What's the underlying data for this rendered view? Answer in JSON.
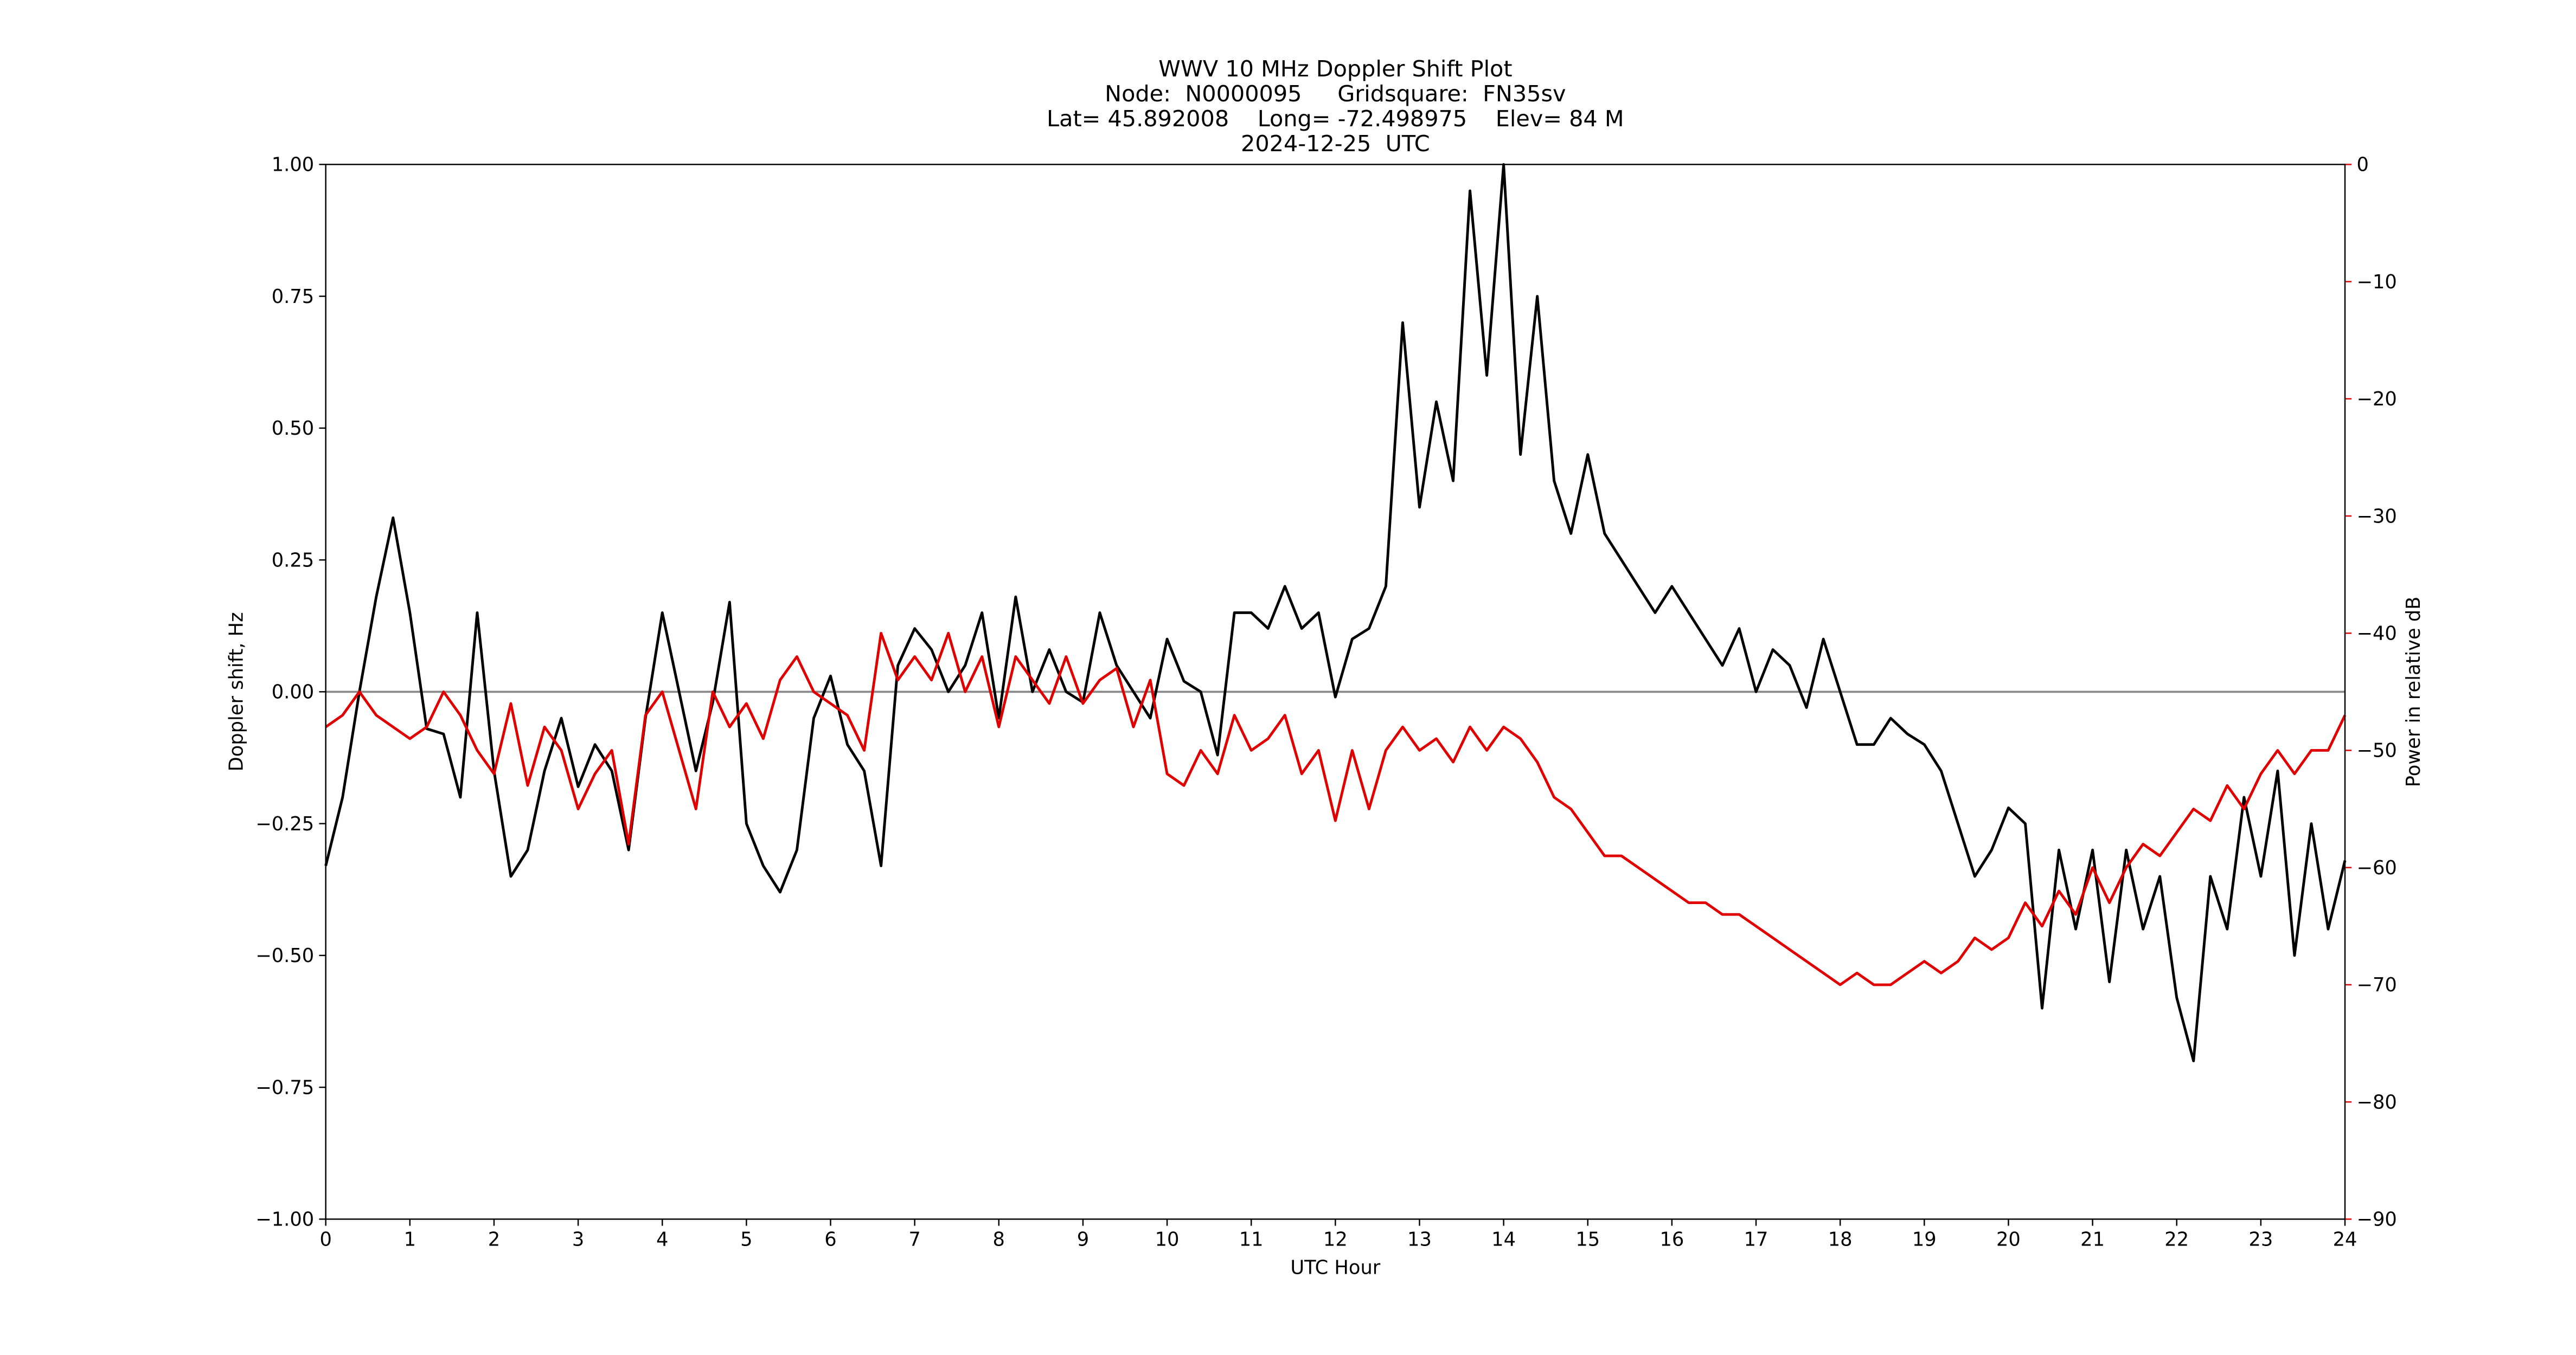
{
  "chart_data": {
    "type": "line",
    "title": [
      "WWV 10 MHz Doppler Shift Plot",
      "Node:  N0000095     Gridsquare:  FN35sv",
      "Lat= 45.892008    Long= -72.498975    Elev= 84 M",
      "2024-12-25  UTC"
    ],
    "xlabel": "UTC Hour",
    "ylabel": "Doppler shift, Hz",
    "y2label": "Power in relative dB",
    "y2color": "#e00000",
    "hline": 0,
    "hline_color": "#888888",
    "xlim": [
      0,
      24
    ],
    "xticks": [
      0,
      1,
      2,
      3,
      4,
      5,
      6,
      7,
      8,
      9,
      10,
      11,
      12,
      13,
      14,
      15,
      16,
      17,
      18,
      19,
      20,
      21,
      22,
      23,
      24
    ],
    "ylim": [
      -1,
      1
    ],
    "yticks": [
      {
        "value": -1,
        "label": "−1.00"
      },
      {
        "value": -0.75,
        "label": "−0.75"
      },
      {
        "value": -0.5,
        "label": "−0.50"
      },
      {
        "value": -0.25,
        "label": "−0.25"
      },
      {
        "value": 0,
        "label": "0.00"
      },
      {
        "value": 0.25,
        "label": "0.25"
      },
      {
        "value": 0.5,
        "label": "0.50"
      },
      {
        "value": 0.75,
        "label": "0.75"
      },
      {
        "value": 1,
        "label": "1.00"
      }
    ],
    "y2lim": [
      -90,
      0
    ],
    "y2ticks": [
      {
        "value": -90,
        "label": "−90"
      },
      {
        "value": -80,
        "label": "−80"
      },
      {
        "value": -70,
        "label": "−70"
      },
      {
        "value": -60,
        "label": "−60"
      },
      {
        "value": -50,
        "label": "−50"
      },
      {
        "value": -40,
        "label": "−40"
      },
      {
        "value": -30,
        "label": "−30"
      },
      {
        "value": -20,
        "label": "−20"
      },
      {
        "value": -10,
        "label": "−10"
      },
      0
    ],
    "x": [
      0,
      0.2,
      0.4,
      0.6,
      0.8,
      1,
      1.2,
      1.4,
      1.6,
      1.8,
      2,
      2.2,
      2.4,
      2.6,
      2.8,
      3,
      3.2,
      3.4,
      3.6,
      3.8,
      4,
      4.2,
      4.4,
      4.6,
      4.8,
      5,
      5.2,
      5.4,
      5.6,
      5.8,
      6,
      6.2,
      6.4,
      6.6,
      6.8,
      7,
      7.2,
      7.4,
      7.6,
      7.8,
      8,
      8.2,
      8.4,
      8.6,
      8.8,
      9,
      9.2,
      9.4,
      9.6,
      9.8,
      10,
      10.2,
      10.4,
      10.6,
      10.8,
      11,
      11.2,
      11.4,
      11.6,
      11.8,
      12,
      12.2,
      12.4,
      12.6,
      12.8,
      13,
      13.2,
      13.4,
      13.6,
      13.8,
      14,
      14.2,
      14.4,
      14.6,
      14.8,
      15,
      15.2,
      15.4,
      15.6,
      15.8,
      16,
      16.2,
      16.4,
      16.6,
      16.8,
      17,
      17.2,
      17.4,
      17.6,
      17.8,
      18,
      18.2,
      18.4,
      18.6,
      18.8,
      19,
      19.2,
      19.4,
      19.6,
      19.8,
      20,
      20.2,
      20.4,
      20.6,
      20.8,
      21,
      21.2,
      21.4,
      21.6,
      21.8,
      22,
      22.2,
      22.4,
      22.6,
      22.8,
      23,
      23.2,
      23.4,
      23.6,
      23.8,
      24
    ],
    "series": [
      {
        "color": "#000000",
        "values": [
          -0.33,
          -0.2,
          0.0,
          0.18,
          0.33,
          0.15,
          -0.07,
          -0.08,
          -0.2,
          0.15,
          -0.15,
          -0.35,
          -0.3,
          -0.15,
          -0.05,
          -0.18,
          -0.1,
          -0.15,
          -0.3,
          -0.05,
          0.15,
          0.0,
          -0.15,
          -0.02,
          0.17,
          -0.25,
          -0.33,
          -0.38,
          -0.3,
          -0.05,
          0.03,
          -0.1,
          -0.15,
          -0.33,
          0.05,
          0.12,
          0.08,
          0.0,
          0.05,
          0.15,
          -0.05,
          0.18,
          0.0,
          0.08,
          0.0,
          -0.02,
          0.15,
          0.05,
          0.0,
          -0.05,
          0.1,
          0.02,
          0.0,
          -0.12,
          0.15,
          0.15,
          0.12,
          0.2,
          0.12,
          0.15,
          -0.01,
          0.1,
          0.12,
          0.2,
          0.7,
          0.35,
          0.55,
          0.4,
          0.95,
          0.6,
          1.0,
          0.45,
          0.75,
          0.4,
          0.3,
          0.45,
          0.3,
          0.25,
          0.2,
          0.15,
          0.2,
          0.15,
          0.1,
          0.05,
          0.12,
          0.0,
          0.08,
          0.05,
          -0.03,
          0.1,
          0.0,
          -0.1,
          -0.1,
          -0.05,
          -0.08,
          -0.1,
          -0.15,
          -0.25,
          -0.35,
          -0.3,
          -0.22,
          -0.25,
          -0.6,
          -0.3,
          -0.45,
          -0.3,
          -0.55,
          -0.3,
          -0.45,
          -0.35,
          -0.58,
          -0.7,
          -0.35,
          -0.45,
          -0.2,
          -0.35,
          -0.15,
          -0.5,
          -0.25,
          -0.45,
          -0.32
        ]
      },
      {
        "color": "#e00000",
        "axis": "y2",
        "values": [
          -48,
          -47,
          -45,
          -47,
          -48,
          -49,
          -48,
          -45,
          -47,
          -50,
          -52,
          -46,
          -53,
          -48,
          -50,
          -55,
          -52,
          -50,
          -58,
          -47,
          -45,
          -50,
          -55,
          -45,
          -48,
          -46,
          -49,
          -44,
          -42,
          -45,
          -46,
          -47,
          -50,
          -40,
          -44,
          -42,
          -44,
          -40,
          -45,
          -42,
          -48,
          -42,
          -44,
          -46,
          -42,
          -46,
          -44,
          -43,
          -48,
          -44,
          -52,
          -53,
          -50,
          -52,
          -47,
          -50,
          -49,
          -47,
          -52,
          -50,
          -56,
          -50,
          -55,
          -50,
          -48,
          -50,
          -49,
          -51,
          -48,
          -50,
          -48,
          -49,
          -51,
          -54,
          -55,
          -57,
          -59,
          -59,
          -60,
          -61,
          -62,
          -63,
          -63,
          -64,
          -64,
          -65,
          -66,
          -67,
          -68,
          -69,
          -70,
          -69,
          -70,
          -70,
          -69,
          -68,
          -69,
          -68,
          -66,
          -67,
          -66,
          -63,
          -65,
          -62,
          -64,
          -60,
          -63,
          -60,
          -58,
          -59,
          -57,
          -55,
          -56,
          -53,
          -55,
          -52,
          -50,
          -52,
          -50,
          -50,
          -47
        ]
      }
    ]
  }
}
